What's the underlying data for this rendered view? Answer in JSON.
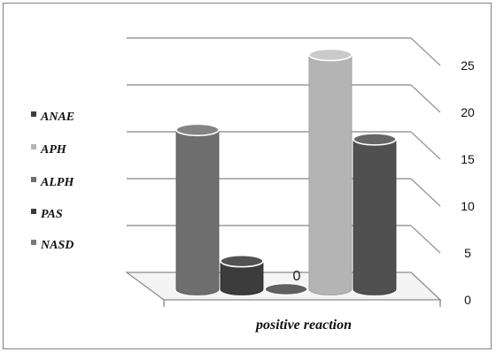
{
  "chart_data": {
    "type": "bar",
    "style": "3d-cylinder",
    "categories": [
      "positive reaction"
    ],
    "xlabel": "positive reaction",
    "ylim": [
      0,
      25
    ],
    "yticks": [
      0,
      5,
      10,
      15,
      20,
      25
    ],
    "grid": true,
    "legend_position": "left",
    "series": [
      {
        "name": "ANAE",
        "value": 17,
        "color": "#6e6e6e"
      },
      {
        "name": "APH",
        "value": 3,
        "color": "#3c3c3c"
      },
      {
        "name": "ALPH",
        "value": 0,
        "color": "#4a4a4a",
        "data_label": "0"
      },
      {
        "name": "PAS",
        "value": 25,
        "color": "#b4b4b4"
      },
      {
        "name": "NASD",
        "value": 16,
        "color": "#505050"
      }
    ],
    "legend_order": [
      "ANAE",
      "APH",
      "ALPH",
      "PAS",
      "NASD"
    ],
    "legend_colors": {
      "ANAE": "#3c3c3c",
      "APH": "#b4b4b4",
      "ALPH": "#6e6e6e",
      "PAS": "#3c3c3c",
      "NASD": "#7a7a7a"
    }
  }
}
